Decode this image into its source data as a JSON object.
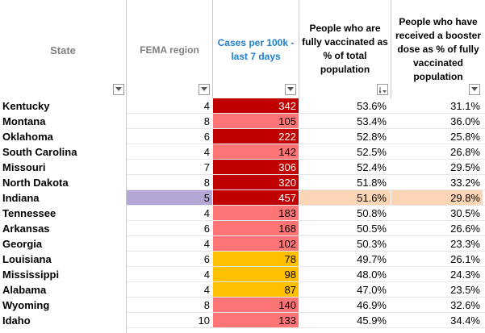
{
  "colors": {
    "cases_high": "#c00000",
    "cases_mid": "#ff7474",
    "cases_low": "#ffc000",
    "highlight_state": "#b4a7d6",
    "highlight_row": "#fcd5b4",
    "cases_header": "#1f7fd0",
    "muted_header": "#7f7f7f"
  },
  "headers": {
    "state": "State",
    "fema": "FEMA region",
    "cases": [
      "Cases per 100k -",
      "last 7 days"
    ],
    "vax": [
      "People who are",
      "fully vaccinated as",
      "% of total",
      "population"
    ],
    "boost": [
      "People who have",
      "received a booster",
      "dose as % of fully",
      "vaccinated",
      "population"
    ]
  },
  "rows": [
    {
      "state": "Kentucky",
      "fema": "4",
      "cases": "342",
      "level": "high",
      "vax": "53.6%",
      "boost": "31.1%"
    },
    {
      "state": "Montana",
      "fema": "8",
      "cases": "105",
      "level": "mid",
      "vax": "53.4%",
      "boost": "36.0%"
    },
    {
      "state": "Oklahoma",
      "fema": "6",
      "cases": "222",
      "level": "high",
      "vax": "52.8%",
      "boost": "25.8%"
    },
    {
      "state": "South Carolina",
      "fema": "4",
      "cases": "142",
      "level": "mid",
      "vax": "52.5%",
      "boost": "26.8%"
    },
    {
      "state": "Missouri",
      "fema": "7",
      "cases": "306",
      "level": "high",
      "vax": "52.4%",
      "boost": "29.5%"
    },
    {
      "state": "North Dakota",
      "fema": "8",
      "cases": "320",
      "level": "high",
      "vax": "51.8%",
      "boost": "33.2%"
    },
    {
      "state": "Indiana",
      "fema": "5",
      "cases": "457",
      "level": "high",
      "vax": "51.6%",
      "boost": "29.8%",
      "highlight": true
    },
    {
      "state": "Tennessee",
      "fema": "4",
      "cases": "183",
      "level": "mid",
      "vax": "50.8%",
      "boost": "30.5%"
    },
    {
      "state": "Arkansas",
      "fema": "6",
      "cases": "168",
      "level": "mid",
      "vax": "50.5%",
      "boost": "26.6%"
    },
    {
      "state": "Georgia",
      "fema": "4",
      "cases": "102",
      "level": "mid",
      "vax": "50.3%",
      "boost": "23.3%"
    },
    {
      "state": "Louisiana",
      "fema": "6",
      "cases": "78",
      "level": "low",
      "vax": "49.7%",
      "boost": "26.1%"
    },
    {
      "state": "Mississippi",
      "fema": "4",
      "cases": "98",
      "level": "low",
      "vax": "48.0%",
      "boost": "24.3%"
    },
    {
      "state": "Alabama",
      "fema": "4",
      "cases": "87",
      "level": "low",
      "vax": "47.0%",
      "boost": "23.5%"
    },
    {
      "state": "Wyoming",
      "fema": "8",
      "cases": "140",
      "level": "mid",
      "vax": "46.9%",
      "boost": "32.6%"
    },
    {
      "state": "Idaho",
      "fema": "10",
      "cases": "133",
      "level": "mid",
      "vax": "45.9%",
      "boost": "34.4%"
    }
  ],
  "filters": {
    "state": "chevron-down-icon",
    "fema": "chevron-down-icon",
    "cases": "chevron-down-icon",
    "vax": "sort-descending-filter-icon",
    "boost": "chevron-down-icon"
  }
}
